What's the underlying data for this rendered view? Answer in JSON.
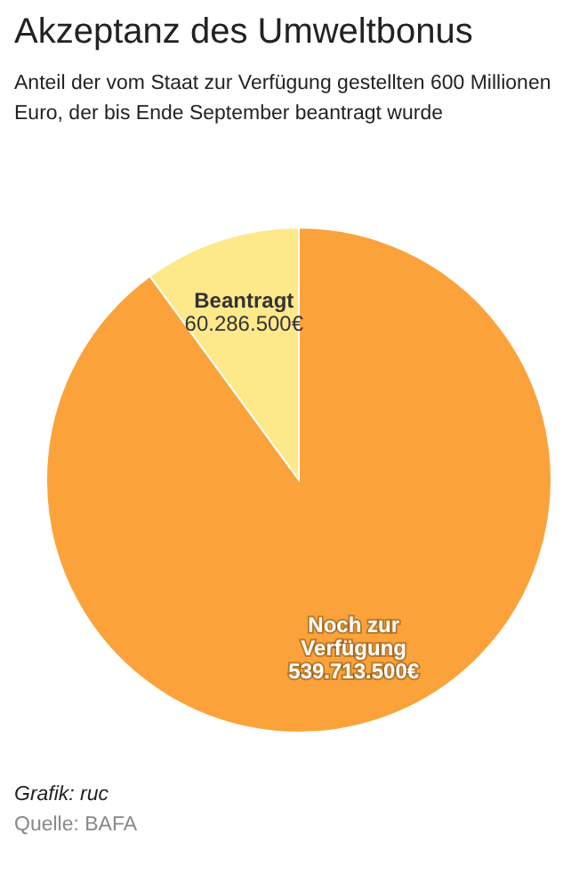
{
  "chart_data": {
    "type": "pie",
    "title": "Akzeptanz des Umweltbonus",
    "subtitle": "Anteil der vom Staat zur Verfügung gestellten 600 Millionen Euro, der bis Ende September beantragt wurde",
    "categories": [
      "Beantragt",
      "Noch zur Verfügung"
    ],
    "values": [
      60286500,
      539713500
    ],
    "value_labels": [
      "60.286.500€",
      "539.713.500€"
    ],
    "colors": [
      "#fde98a",
      "#fba33a"
    ],
    "annotations": [
      "Grafik: ruc",
      "Quelle: BAFA"
    ]
  }
}
